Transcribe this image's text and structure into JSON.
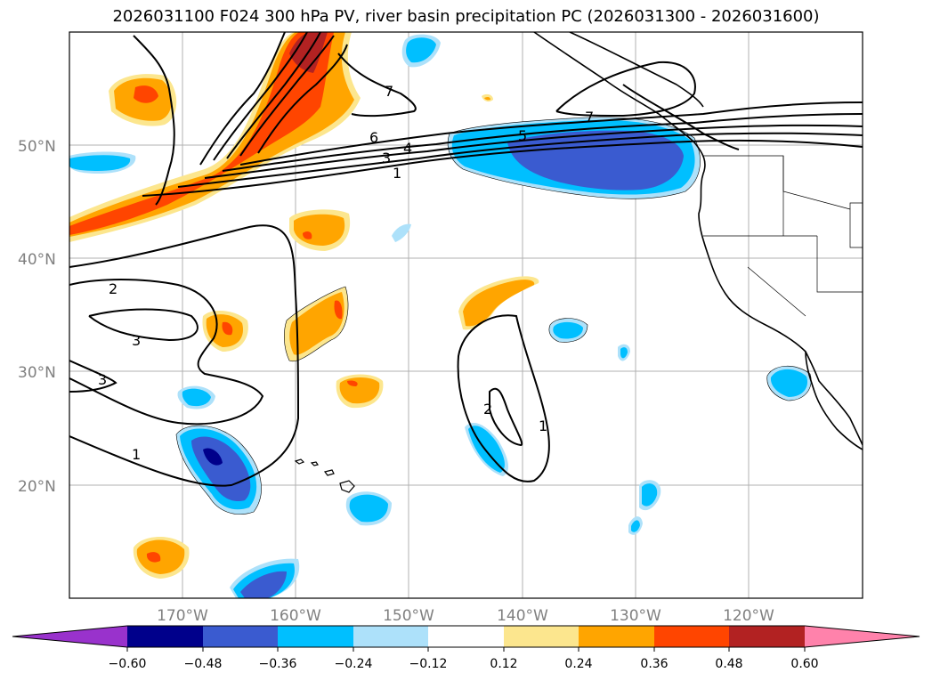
{
  "title": "2026031100 F024 300 hPa PV, river basin precipitation PC (2026031300 - 2026031600)",
  "map": {
    "lat_labels": [
      "50°N",
      "40°N",
      "30°N",
      "20°N"
    ],
    "lon_labels": [
      "170°W",
      "160°W",
      "150°W",
      "140°W",
      "130°W",
      "120°W"
    ],
    "contour_labels": [
      "7",
      "6",
      "4",
      "3",
      "1",
      "5",
      "7",
      "2",
      "3",
      "3",
      "1",
      "2",
      "1"
    ],
    "colors": {
      "neg_extreme": "#9932CC",
      "neg_060": "#00008B",
      "neg_048": "#3A5BD0",
      "neg_036": "#00BFFF",
      "neg_024": "#ADE1FA",
      "neutral": "#FFFFFF",
      "pos_012": "#FCE68E",
      "pos_024": "#FFA500",
      "pos_036": "#FF4500",
      "pos_048": "#B22222",
      "pos_extreme": "#FF82AB"
    }
  },
  "colorbar": {
    "ticks": [
      "−0.60",
      "−0.48",
      "−0.36",
      "−0.24",
      "−0.12",
      "0.12",
      "0.24",
      "0.36",
      "0.48",
      "0.60"
    ]
  }
}
